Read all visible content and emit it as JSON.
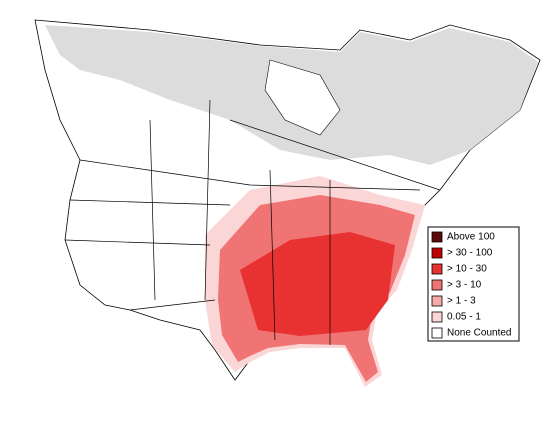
{
  "legend": {
    "items": [
      {
        "label": "Above 100",
        "color": "#5a0a0a"
      },
      {
        "label": "> 30 - 100",
        "color": "#c00000"
      },
      {
        "label": "> 10 - 30",
        "color": "#e83232"
      },
      {
        "label": "> 3 - 10",
        "color": "#f07474"
      },
      {
        "label": "> 1 - 3",
        "color": "#f6abab"
      },
      {
        "label": "0.05 - 1",
        "color": "#fbd6d6"
      },
      {
        "label": "None Counted",
        "color": "#ffffff"
      }
    ]
  }
}
